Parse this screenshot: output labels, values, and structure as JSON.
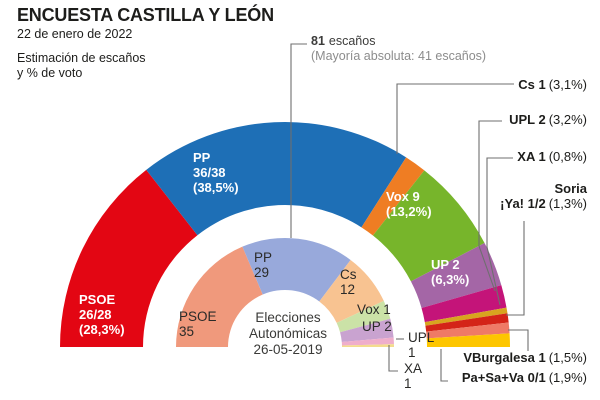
{
  "header": {
    "title": "ENCUESTA CASTILLA Y LEÓN",
    "date": "22 de enero de 2022",
    "subtitle_line1": "Estimación de escaños",
    "subtitle_line2": "y % de voto"
  },
  "annotation": {
    "total_bold": "81",
    "total_rest": "escaños",
    "majority": "(Mayoría absoluta: 41 escaños)"
  },
  "chart_data": {
    "type": "hemicycle",
    "total_seats": 81,
    "majority_seats": 41,
    "outer_2022": {
      "description": "Estimación de escaños y % de voto (encuesta 22-01-2022), arco dimensionado por % de voto",
      "series": [
        {
          "id": "psoe",
          "party": "PSOE",
          "seats": "26/28",
          "pct_label": "(28,3%)",
          "label": "PSOE 26/28",
          "vote_share": 28.3,
          "color": "#e30613"
        },
        {
          "id": "pp",
          "party": "PP",
          "seats": "36/38",
          "pct_label": "(38,5%)",
          "label": "PP 36/38",
          "vote_share": 38.5,
          "color": "#1e6fb6"
        },
        {
          "id": "cs",
          "party": "Cs",
          "seats": "1",
          "pct_label": "(3,1%)",
          "label": "Cs 1",
          "vote_share": 3.1,
          "color": "#ef7d23"
        },
        {
          "id": "vox",
          "party": "Vox",
          "seats": "9",
          "pct_label": "(13,2%)",
          "label": "Vox 9",
          "vote_share": 13.2,
          "color": "#77b52b"
        },
        {
          "id": "up",
          "party": "UP",
          "seats": "2",
          "pct_label": "(6,3%)",
          "label": "UP 2",
          "vote_share": 6.3,
          "color": "#a466a6"
        },
        {
          "id": "upl",
          "party": "UPL",
          "seats": "2",
          "pct_label": "(3,2%)",
          "label": "UPL 2",
          "vote_share": 3.2,
          "color": "#c41479"
        },
        {
          "id": "xa",
          "party": "XA",
          "seats": "1",
          "pct_label": "(0,8%)",
          "label": "XA 1",
          "vote_share": 0.8,
          "color": "#d8a41f"
        },
        {
          "id": "soria",
          "party": "Soria ¡Ya!",
          "seats": "1/2",
          "pct_label": "(1,3%)",
          "label": "Soria ¡Ya! 1/2",
          "line1": "Soria",
          "line2": "¡Ya! 1/2",
          "vote_share": 1.3,
          "color": "#d42418"
        },
        {
          "id": "vburgalesa",
          "party": "VBurgalesa",
          "seats": "1",
          "pct_label": "(1,5%)",
          "label": "VBurgalesa 1",
          "vote_share": 1.5,
          "color": "#ef7a66"
        },
        {
          "id": "pasava",
          "party": "Pa+Sa+Va",
          "seats": "0/1",
          "pct_label": "(1,9%)",
          "label": "Pa+Sa+Va 0/1",
          "vote_share": 1.9,
          "color": "#fdc600"
        }
      ]
    },
    "inner_2019": {
      "center_line1": "Elecciones",
      "center_line2": "Autonómicas",
      "center_line3": "26-05-2019",
      "series": [
        {
          "id": "psoe",
          "party": "PSOE",
          "seats": "35",
          "label": "PSOE 35",
          "arc_deg": 67,
          "color": "#f0997c"
        },
        {
          "id": "pp",
          "party": "PP",
          "seats": "29",
          "label": "PP 29",
          "arc_deg": 60,
          "color": "#98a9db"
        },
        {
          "id": "cs",
          "party": "Cs",
          "seats": "12",
          "label": "Cs 12",
          "arc_deg": 28,
          "color": "#f8c391"
        },
        {
          "id": "vox",
          "party": "Vox",
          "seats": "1",
          "label": "Vox 1",
          "arc_deg": 10,
          "color": "#cbe2a7"
        },
        {
          "id": "up",
          "party": "UP",
          "seats": "2",
          "label": "UP 2",
          "arc_deg": 10,
          "color": "#c9a3d0"
        },
        {
          "id": "upl",
          "party": "UPL",
          "seats": "1",
          "label": "UPL 1",
          "arc_deg": 3.5,
          "color": "#efaecb"
        },
        {
          "id": "xa",
          "party": "XA",
          "seats": "1",
          "label": "XA 1",
          "arc_deg": 1.5,
          "color": "#f3dc8e"
        }
      ]
    }
  }
}
